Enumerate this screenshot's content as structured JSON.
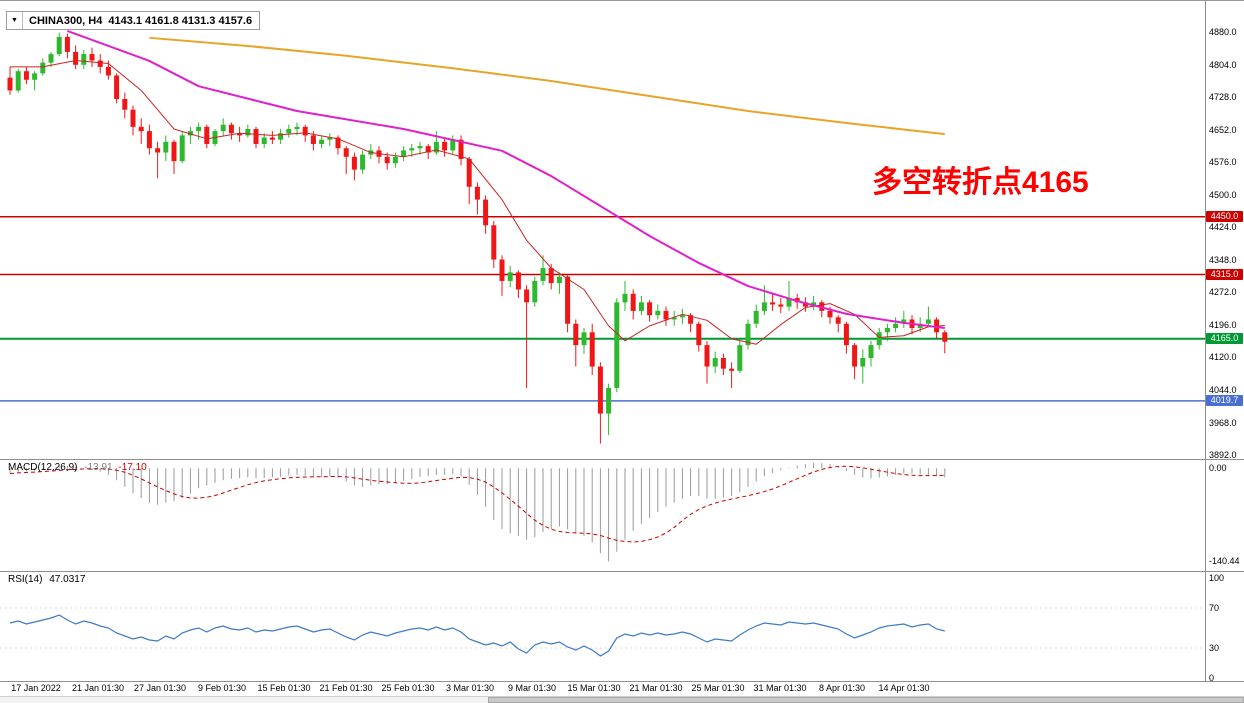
{
  "window": {
    "collapse_icon": "▼",
    "title_symbol": "CHINA300, H4",
    "title_ohlc": "4143.1 4161.8 4131.3 4157.6"
  },
  "colors": {
    "candle_up": "#2db82d",
    "candle_down": "#f01616",
    "annotation": "#ff0000",
    "resistance_line": "#cc0000",
    "pivot_line": "#009933",
    "support_line": "#4a6fd4",
    "macd_bar": "#999999",
    "macd_signal": "#cc0000",
    "rsi_line": "#3c7ac8"
  },
  "chart_data": [
    {
      "type": "candlestick",
      "title": "CHINA300, H4",
      "timeframe": "H4",
      "last_ohlc": {
        "open": 4143.1,
        "high": 4161.8,
        "low": 4131.3,
        "close": 4157.6
      },
      "ylim": [
        3884,
        4954
      ],
      "y_ticks": [
        4880.0,
        4804.0,
        4728.0,
        4652.0,
        4576.0,
        4500.0,
        4424.0,
        4348.0,
        4272.0,
        4196.0,
        4120.0,
        4044.0,
        3968.0,
        3892.0
      ],
      "x_labels": [
        "17 Jan 2022",
        "21 Jan 01:30",
        "27 Jan 01:30",
        "9 Feb 01:30",
        "15 Feb 01:30",
        "21 Feb 01:30",
        "25 Feb 01:30",
        "3 Mar 01:30",
        "9 Mar 01:30",
        "15 Mar 01:30",
        "21 Mar 01:30",
        "25 Mar 01:30",
        "31 Mar 01:30",
        "8 Apr 01:30",
        "14 Apr 01:30"
      ],
      "annotation": {
        "text": "多空转折点4165",
        "color": "#ff0000"
      },
      "hlines": [
        {
          "price": 4450.0,
          "label": "4450.0",
          "color": "#cc0000",
          "width": 1.5
        },
        {
          "price": 4315.0,
          "label": "4315.0",
          "color": "#cc0000",
          "width": 1.5
        },
        {
          "price": 4165.0,
          "label": "4165.0",
          "color": "#009933",
          "width": 2
        },
        {
          "price": 4019.7,
          "label": "4019.7",
          "color": "#4a6fd4",
          "width": 1.5
        }
      ],
      "overlays": [
        {
          "name": "ma-fast-red-line",
          "color": "#cc2222",
          "width": 1,
          "points": [
            [
              0,
              4800
            ],
            [
              4,
              4800
            ],
            [
              8,
              4815
            ],
            [
              12,
              4808
            ],
            [
              16,
              4745
            ],
            [
              20,
              4655
            ],
            [
              24,
              4632
            ],
            [
              28,
              4645
            ],
            [
              32,
              4640
            ],
            [
              36,
              4646
            ],
            [
              40,
              4632
            ],
            [
              44,
              4600
            ],
            [
              48,
              4590
            ],
            [
              52,
              4606
            ],
            [
              56,
              4585
            ],
            [
              60,
              4490
            ],
            [
              63,
              4395
            ],
            [
              66,
              4330
            ],
            [
              70,
              4280
            ],
            [
              73,
              4195
            ],
            [
              75,
              4160
            ],
            [
              78,
              4195
            ],
            [
              82,
              4222
            ],
            [
              85,
              4208
            ],
            [
              88,
              4165
            ],
            [
              91,
              4152
            ],
            [
              94,
              4198
            ],
            [
              97,
              4238
            ],
            [
              100,
              4247
            ],
            [
              103,
              4222
            ],
            [
              106,
              4168
            ],
            [
              109,
              4172
            ],
            [
              112,
              4193
            ],
            [
              114,
              4196
            ]
          ]
        },
        {
          "name": "ma-mid-magenta-line",
          "color": "#e020c8",
          "width": 2,
          "points": [
            [
              7,
              4884
            ],
            [
              17,
              4814
            ],
            [
              23,
              4755
            ],
            [
              35,
              4697
            ],
            [
              48,
              4655
            ],
            [
              60,
              4604
            ],
            [
              66,
              4545
            ],
            [
              72,
              4475
            ],
            [
              78,
              4405
            ],
            [
              84,
              4342
            ],
            [
              90,
              4288
            ],
            [
              96,
              4253
            ],
            [
              102,
              4223
            ],
            [
              109,
              4202
            ],
            [
              114,
              4190
            ]
          ]
        },
        {
          "name": "ma-slow-orange-line",
          "color": "#e8a428",
          "width": 2,
          "points": [
            [
              17,
              4868
            ],
            [
              29,
              4849
            ],
            [
              41,
              4826
            ],
            [
              54,
              4797
            ],
            [
              66,
              4767
            ],
            [
              78,
              4732
            ],
            [
              90,
              4697
            ],
            [
              102,
              4669
            ],
            [
              114,
              4643
            ]
          ]
        }
      ],
      "candles": [
        [
          4775,
          4800,
          4735,
          4745
        ],
        [
          4745,
          4795,
          4740,
          4790
        ],
        [
          4790,
          4800,
          4760,
          4770
        ],
        [
          4770,
          4790,
          4745,
          4785
        ],
        [
          4785,
          4820,
          4780,
          4810
        ],
        [
          4810,
          4835,
          4800,
          4830
        ],
        [
          4830,
          4880,
          4825,
          4870
        ],
        [
          4870,
          4878,
          4820,
          4835
        ],
        [
          4835,
          4850,
          4795,
          4805
        ],
        [
          4805,
          4840,
          4795,
          4830
        ],
        [
          4830,
          4845,
          4800,
          4815
        ],
        [
          4815,
          4830,
          4785,
          4800
        ],
        [
          4800,
          4815,
          4770,
          4780
        ],
        [
          4780,
          4785,
          4715,
          4725
        ],
        [
          4725,
          4740,
          4680,
          4700
        ],
        [
          4700,
          4710,
          4640,
          4660
        ],
        [
          4660,
          4680,
          4620,
          4650
        ],
        [
          4650,
          4665,
          4595,
          4610
        ],
        [
          4610,
          4625,
          4540,
          4600
        ],
        [
          4600,
          4640,
          4580,
          4625
        ],
        [
          4625,
          4630,
          4550,
          4580
        ],
        [
          4580,
          4650,
          4575,
          4640
        ],
        [
          4640,
          4660,
          4620,
          4650
        ],
        [
          4650,
          4670,
          4630,
          4660
        ],
        [
          4660,
          4665,
          4610,
          4620
        ],
        [
          4620,
          4655,
          4615,
          4650
        ],
        [
          4650,
          4680,
          4640,
          4665
        ],
        [
          4665,
          4670,
          4630,
          4645
        ],
        [
          4645,
          4660,
          4625,
          4640
        ],
        [
          4640,
          4665,
          4635,
          4655
        ],
        [
          4655,
          4660,
          4610,
          4620
        ],
        [
          4620,
          4645,
          4610,
          4635
        ],
        [
          4635,
          4650,
          4620,
          4630
        ],
        [
          4630,
          4655,
          4620,
          4645
        ],
        [
          4645,
          4665,
          4635,
          4655
        ],
        [
          4655,
          4670,
          4640,
          4660
        ],
        [
          4660,
          4665,
          4625,
          4640
        ],
        [
          4640,
          4650,
          4605,
          4620
        ],
        [
          4620,
          4640,
          4610,
          4630
        ],
        [
          4630,
          4645,
          4615,
          4635
        ],
        [
          4635,
          4640,
          4595,
          4610
        ],
        [
          4610,
          4615,
          4550,
          4590
        ],
        [
          4590,
          4600,
          4535,
          4560
        ],
        [
          4560,
          4605,
          4550,
          4595
        ],
        [
          4595,
          4620,
          4585,
          4605
        ],
        [
          4605,
          4615,
          4575,
          4590
        ],
        [
          4590,
          4600,
          4560,
          4575
        ],
        [
          4575,
          4600,
          4565,
          4590
        ],
        [
          4590,
          4615,
          4580,
          4605
        ],
        [
          4605,
          4620,
          4590,
          4610
        ],
        [
          4610,
          4625,
          4595,
          4615
        ],
        [
          4615,
          4620,
          4585,
          4600
        ],
        [
          4600,
          4650,
          4595,
          4625
        ],
        [
          4625,
          4635,
          4590,
          4605
        ],
        [
          4605,
          4640,
          4595,
          4630
        ],
        [
          4630,
          4640,
          4570,
          4585
        ],
        [
          4585,
          4590,
          4480,
          4520
        ],
        [
          4520,
          4530,
          4455,
          4490
        ],
        [
          4490,
          4500,
          4410,
          4430
        ],
        [
          4430,
          4440,
          4330,
          4350
        ],
        [
          4350,
          4360,
          4265,
          4300
        ],
        [
          4300,
          4335,
          4285,
          4320
        ],
        [
          4320,
          4325,
          4260,
          4280
        ],
        [
          4280,
          4290,
          4050,
          4250
        ],
        [
          4250,
          4310,
          4240,
          4300
        ],
        [
          4300,
          4360,
          4290,
          4330
        ],
        [
          4330,
          4340,
          4280,
          4295
        ],
        [
          4295,
          4320,
          4270,
          4310
        ],
        [
          4310,
          4315,
          4180,
          4200
        ],
        [
          4200,
          4210,
          4100,
          4150
        ],
        [
          4150,
          4190,
          4130,
          4180
        ],
        [
          4180,
          4200,
          4080,
          4100
        ],
        [
          4100,
          4110,
          3920,
          3990
        ],
        [
          3990,
          4060,
          3940,
          4050
        ],
        [
          4050,
          4260,
          4040,
          4250
        ],
        [
          4250,
          4300,
          4230,
          4270
        ],
        [
          4270,
          4280,
          4210,
          4230
        ],
        [
          4230,
          4265,
          4220,
          4250
        ],
        [
          4250,
          4255,
          4205,
          4220
        ],
        [
          4220,
          4245,
          4210,
          4230
        ],
        [
          4230,
          4240,
          4195,
          4210
        ],
        [
          4210,
          4230,
          4195,
          4215
        ],
        [
          4215,
          4235,
          4200,
          4220
        ],
        [
          4220,
          4225,
          4180,
          4200
        ],
        [
          4200,
          4205,
          4135,
          4150
        ],
        [
          4150,
          4160,
          4060,
          4100
        ],
        [
          4100,
          4135,
          4085,
          4120
        ],
        [
          4120,
          4130,
          4080,
          4095
        ],
        [
          4095,
          4110,
          4050,
          4090
        ],
        [
          4090,
          4160,
          4085,
          4150
        ],
        [
          4150,
          4210,
          4140,
          4200
        ],
        [
          4200,
          4245,
          4190,
          4230
        ],
        [
          4230,
          4290,
          4220,
          4250
        ],
        [
          4250,
          4270,
          4230,
          4245
        ],
        [
          4245,
          4260,
          4225,
          4240
        ],
        [
          4240,
          4300,
          4230,
          4260
        ],
        [
          4260,
          4270,
          4235,
          4250
        ],
        [
          4250,
          4262,
          4228,
          4240
        ],
        [
          4240,
          4265,
          4232,
          4250
        ],
        [
          4250,
          4255,
          4215,
          4230
        ],
        [
          4230,
          4240,
          4200,
          4215
        ],
        [
          4215,
          4220,
          4180,
          4200
        ],
        [
          4200,
          4205,
          4130,
          4150
        ],
        [
          4150,
          4155,
          4070,
          4100
        ],
        [
          4100,
          4140,
          4060,
          4120
        ],
        [
          4120,
          4160,
          4100,
          4150
        ],
        [
          4150,
          4190,
          4140,
          4180
        ],
        [
          4180,
          4200,
          4160,
          4190
        ],
        [
          4190,
          4215,
          4180,
          4200
        ],
        [
          4200,
          4230,
          4190,
          4210
        ],
        [
          4210,
          4220,
          4175,
          4190
        ],
        [
          4190,
          4215,
          4180,
          4200
        ],
        [
          4200,
          4240,
          4195,
          4210
        ],
        [
          4210,
          4215,
          4165,
          4180
        ],
        [
          4180,
          4185,
          4131,
          4158
        ]
      ]
    },
    {
      "type": "bar",
      "name": "MACD",
      "label": "MACD(12,26,9)",
      "main_value": "-13.91",
      "signal_value": "-17.10",
      "ylim": [
        -155,
        14
      ],
      "y_ticks": [
        {
          "v": 0,
          "label": "0.00"
        },
        {
          "v": -140.44,
          "label": "-140.44"
        }
      ],
      "bar_color": "#999999",
      "signal_color": "#cc0000",
      "values": [
        -8,
        -6,
        -5,
        -4,
        -2,
        0,
        3,
        4,
        2,
        0,
        -2,
        -5,
        -10,
        -18,
        -28,
        -38,
        -45,
        -52,
        -55,
        -52,
        -50,
        -45,
        -38,
        -30,
        -26,
        -22,
        -18,
        -16,
        -15,
        -14,
        -15,
        -15,
        -14,
        -13,
        -11,
        -10,
        -11,
        -13,
        -13,
        -12,
        -14,
        -20,
        -26,
        -28,
        -26,
        -24,
        -24,
        -22,
        -19,
        -16,
        -13,
        -12,
        -10,
        -10,
        -9,
        -12,
        -25,
        -40,
        -58,
        -78,
        -92,
        -98,
        -102,
        -108,
        -104,
        -96,
        -92,
        -88,
        -92,
        -98,
        -102,
        -112,
        -128,
        -140.44,
        -126,
        -108,
        -94,
        -84,
        -75,
        -66,
        -58,
        -52,
        -46,
        -42,
        -42,
        -46,
        -46,
        -44,
        -42,
        -36,
        -28,
        -20,
        -12,
        -7,
        -3,
        1,
        4,
        6,
        8,
        8,
        6,
        2,
        -4,
        -10,
        -14,
        -15,
        -14,
        -12,
        -10,
        -8,
        -8,
        -9,
        -10,
        -12,
        -13.91
      ]
    },
    {
      "type": "line",
      "name": "RSI",
      "label": "RSI(14)",
      "value": "47.0317",
      "ylim": [
        -3,
        107
      ],
      "y_ticks": [
        {
          "v": 100,
          "label": "100"
        },
        {
          "v": 70,
          "label": "70"
        },
        {
          "v": 30,
          "label": "30"
        },
        {
          "v": 0,
          "label": "0"
        }
      ],
      "levels": [
        70,
        30
      ],
      "line_color": "#3c7ac8",
      "values": [
        55,
        57,
        54,
        56,
        58,
        60,
        63,
        58,
        54,
        57,
        55,
        52,
        50,
        45,
        42,
        39,
        41,
        38,
        37,
        42,
        39,
        45,
        48,
        50,
        46,
        50,
        52,
        49,
        48,
        50,
        46,
        48,
        47,
        49,
        51,
        52,
        49,
        46,
        48,
        49,
        45,
        41,
        38,
        43,
        46,
        44,
        42,
        45,
        47,
        49,
        50,
        48,
        51,
        48,
        50,
        46,
        39,
        36,
        33,
        35,
        32,
        36,
        29,
        25,
        33,
        36,
        34,
        36,
        31,
        28,
        32,
        28,
        22,
        27,
        40,
        44,
        42,
        45,
        43,
        45,
        43,
        44,
        46,
        44,
        40,
        36,
        39,
        38,
        37,
        43,
        48,
        52,
        55,
        54,
        53,
        56,
        55,
        54,
        55,
        53,
        51,
        49,
        44,
        40,
        43,
        46,
        50,
        52,
        53,
        54,
        51,
        53,
        54,
        49,
        47
      ]
    }
  ]
}
